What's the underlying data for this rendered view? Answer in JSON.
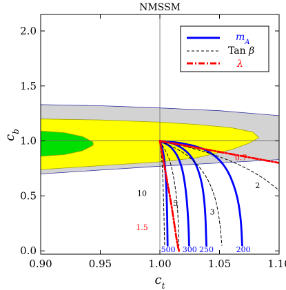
{
  "chart_data": {
    "type": "line",
    "title": "NMSSM",
    "xlabel": "c_t",
    "ylabel": "c_b",
    "xlim": [
      0.9,
      1.1
    ],
    "ylim": [
      -0.03,
      2.15
    ],
    "x_ticks": [
      0.9,
      0.95,
      1.0,
      1.05,
      1.1
    ],
    "x_tick_labels": [
      "0.90",
      "0.95",
      "1.00",
      "1.05",
      "1.10"
    ],
    "y_ticks": [
      0.0,
      0.5,
      1.0,
      1.5,
      2.0
    ],
    "y_tick_labels": [
      "0.0",
      "0.5",
      "1.0",
      "1.5",
      "2.0"
    ],
    "regions": [
      {
        "color": "#d3d3d3",
        "points": [
          [
            0.9,
            0.7
          ],
          [
            0.95,
            0.735
          ],
          [
            1.0,
            0.77
          ],
          [
            1.05,
            0.8
          ],
          [
            1.1,
            0.83
          ],
          [
            1.1,
            1.23
          ],
          [
            1.05,
            1.275
          ],
          [
            1.0,
            1.3
          ],
          [
            0.95,
            1.32
          ],
          [
            0.9,
            1.33
          ]
        ]
      },
      {
        "color": "#ffff00",
        "points": [
          [
            0.9,
            0.74
          ],
          [
            0.95,
            0.775
          ],
          [
            1.0,
            0.81
          ],
          [
            1.03,
            0.845
          ],
          [
            1.06,
            0.92
          ],
          [
            1.075,
            0.98
          ],
          [
            1.083,
            1.03
          ],
          [
            1.078,
            1.08
          ],
          [
            1.06,
            1.12
          ],
          [
            1.03,
            1.15
          ],
          [
            1.0,
            1.17
          ],
          [
            0.95,
            1.19
          ],
          [
            0.9,
            1.2
          ]
        ]
      },
      {
        "color": "#00e000",
        "points": [
          [
            0.9,
            0.86
          ],
          [
            0.92,
            0.875
          ],
          [
            0.935,
            0.91
          ],
          [
            0.944,
            0.96
          ],
          [
            0.944,
            0.99
          ],
          [
            0.935,
            1.04
          ],
          [
            0.92,
            1.075
          ],
          [
            0.9,
            1.09
          ]
        ]
      }
    ],
    "series": [
      {
        "name": "m_A",
        "color": "#0000ff",
        "style": "solid",
        "curves": [
          {
            "label": "500",
            "points": [
              [
                1.0,
                1.0
              ],
              [
                1.003,
                0.9
              ],
              [
                1.005,
                0.7
              ],
              [
                1.006,
                0.4
              ],
              [
                1.0065,
                0.05
              ]
            ]
          },
          {
            "label": "300",
            "points": [
              [
                1.0,
                1.0
              ],
              [
                1.01,
                0.95
              ],
              [
                1.018,
                0.8
              ],
              [
                1.022,
                0.55
              ],
              [
                1.024,
                0.25
              ],
              [
                1.0245,
                0.05
              ]
            ]
          },
          {
            "label": "250",
            "points": [
              [
                1.0,
                1.0
              ],
              [
                1.015,
                0.97
              ],
              [
                1.028,
                0.85
              ],
              [
                1.035,
                0.65
              ],
              [
                1.038,
                0.4
              ],
              [
                1.039,
                0.05
              ]
            ]
          },
          {
            "label": "200",
            "points": [
              [
                1.0,
                1.0
              ],
              [
                1.02,
                0.98
              ],
              [
                1.04,
                0.92
              ],
              [
                1.055,
                0.78
              ],
              [
                1.064,
                0.55
              ],
              [
                1.068,
                0.3
              ],
              [
                1.069,
                0.05
              ]
            ]
          }
        ]
      },
      {
        "name": "Tan β",
        "color": "#000000",
        "style": "dashed",
        "curves": [
          {
            "label": "2",
            "points": [
              [
                1.0,
                1.0
              ],
              [
                1.03,
                0.93
              ],
              [
                1.06,
                0.82
              ],
              [
                1.085,
                0.68
              ],
              [
                1.1,
                0.55
              ]
            ]
          },
          {
            "label": "3",
            "points": [
              [
                1.0,
                1.0
              ],
              [
                1.02,
                0.9
              ],
              [
                1.035,
                0.75
              ],
              [
                1.045,
                0.55
              ],
              [
                1.05,
                0.3
              ],
              [
                1.052,
                0.05
              ]
            ]
          },
          {
            "label": "5",
            "points": [
              [
                1.0,
                1.0
              ],
              [
                1.008,
                0.85
              ],
              [
                1.012,
                0.65
              ],
              [
                1.015,
                0.4
              ],
              [
                1.016,
                0.05
              ]
            ]
          },
          {
            "label": "10",
            "points": [
              [
                1.0,
                1.0
              ],
              [
                1.002,
                0.8
              ],
              [
                1.003,
                0.5
              ],
              [
                1.004,
                0.05
              ]
            ]
          }
        ]
      },
      {
        "name": "λ",
        "color": "#ff0000",
        "style": "dashdot",
        "curves": [
          {
            "label": "0.7",
            "points": [
              [
                1.0,
                1.0
              ],
              [
                1.1,
                0.8
              ]
            ]
          },
          {
            "label": "1.5",
            "points": [
              [
                1.0,
                1.0
              ],
              [
                1.005,
                0.7
              ],
              [
                1.01,
                0.4
              ],
              [
                1.014,
                0.1
              ],
              [
                1.016,
                0.0
              ]
            ]
          }
        ]
      }
    ],
    "curve_labels": [
      {
        "text": "2",
        "color": "#000000",
        "x": 1.082,
        "y": 0.57
      },
      {
        "text": "3",
        "color": "#000000",
        "x": 1.044,
        "y": 0.33
      },
      {
        "text": "5",
        "color": "#000000",
        "x": 1.013,
        "y": 0.41
      },
      {
        "text": "10",
        "color": "#000000",
        "x": 0.985,
        "y": 0.5
      },
      {
        "text": "0.7",
        "color": "#ff0000",
        "x": 1.068,
        "y": 0.825
      },
      {
        "text": "1.5",
        "color": "#ff0000",
        "x": 0.985,
        "y": 0.19
      },
      {
        "text": "500",
        "color": "#0000ff",
        "x": 1.007,
        "y": -0.01
      },
      {
        "text": "300",
        "color": "#0000ff",
        "x": 1.025,
        "y": -0.01
      },
      {
        "text": "250",
        "color": "#0000ff",
        "x": 1.039,
        "y": -0.01
      },
      {
        "text": "200",
        "color": "#0000ff",
        "x": 1.07,
        "y": -0.01
      }
    ],
    "reference_lines": {
      "x": 1.0,
      "y": 1.0
    },
    "legend_position": "top-right",
    "grid": false
  }
}
